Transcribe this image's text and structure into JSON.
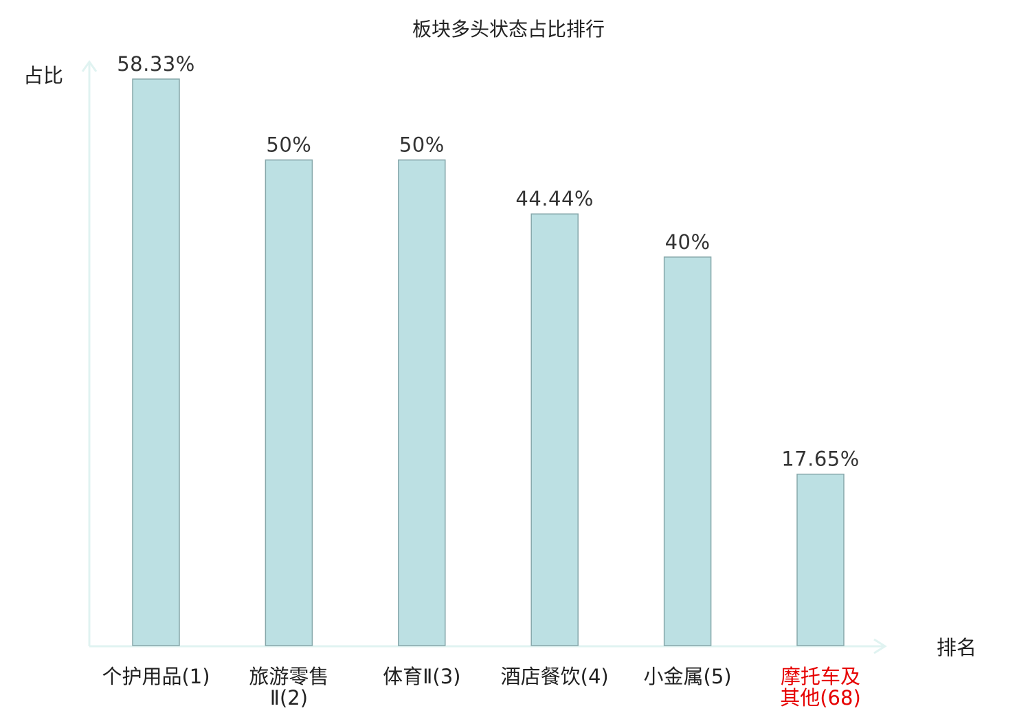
{
  "chart_data": {
    "type": "bar",
    "title": "板块多头状态占比排行",
    "ylabel": "占比",
    "xlabel": "排名",
    "ylim": [
      0,
      62
    ],
    "grid": false,
    "legend": "none",
    "categories": [
      {
        "lines": [
          "个护用品(1)"
        ],
        "highlight": false
      },
      {
        "lines": [
          "旅游零售",
          "Ⅱ(2)"
        ],
        "highlight": false
      },
      {
        "lines": [
          "体育Ⅱ(3)"
        ],
        "highlight": false
      },
      {
        "lines": [
          "酒店餐饮(4)"
        ],
        "highlight": false
      },
      {
        "lines": [
          "小金属(5)"
        ],
        "highlight": false
      },
      {
        "lines": [
          "摩托车及",
          "其他(68)"
        ],
        "highlight": true
      }
    ],
    "values": [
      58.33,
      50,
      50,
      44.44,
      40,
      17.65
    ],
    "value_labels": [
      "58.33%",
      "50%",
      "50%",
      "44.44%",
      "40%",
      "17.65%"
    ]
  },
  "colors": {
    "bar_fill": "#bce0e3",
    "bar_stroke": "#86a7aa",
    "axis": "#e0f3f1",
    "text": "#222222",
    "value_text": "#333333",
    "highlight": "#e60000"
  }
}
